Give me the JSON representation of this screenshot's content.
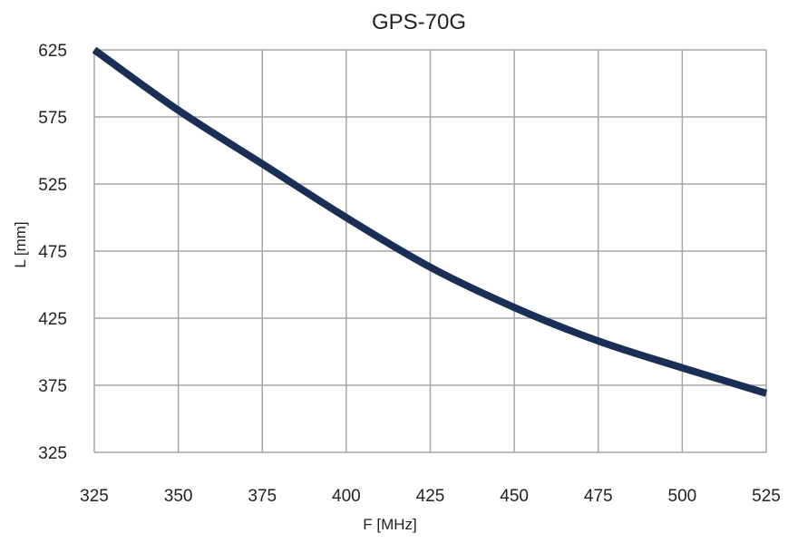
{
  "chart_data": {
    "type": "line",
    "title": "GPS-70G",
    "xlabel": "F [MHz]",
    "ylabel": "L [mm]",
    "xlim": [
      325,
      525
    ],
    "ylim": [
      325,
      625
    ],
    "xticks": [
      "325",
      "350",
      "375",
      "400",
      "425",
      "450",
      "475",
      "500",
      "525"
    ],
    "yticks": [
      "325",
      "375",
      "425",
      "475",
      "525",
      "575",
      "625"
    ],
    "grid": true,
    "line_color": "#1a2f55",
    "series": [
      {
        "x": [
          325,
          350,
          375,
          400,
          425,
          450,
          475,
          500,
          525
        ],
        "y": [
          625,
          580,
          540,
          500,
          463,
          433,
          408,
          388,
          369
        ]
      }
    ]
  }
}
